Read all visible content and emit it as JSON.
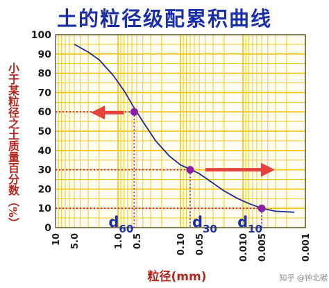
{
  "chart_data": {
    "type": "line",
    "title": "土的粒径级配累积曲线",
    "xlabel": "粒径(mm)",
    "ylabel": "小于某粒径之土质量百分数（%）",
    "x_scale": "log",
    "x_reversed": true,
    "xlim": [
      10,
      0.001
    ],
    "ylim": [
      0,
      100
    ],
    "grid": true,
    "x_tick_labels": [
      "10",
      "5.0",
      "1.0",
      "0.5",
      "0.10",
      "0.05",
      "0.010",
      "0.005",
      "0.001"
    ],
    "x_ticks": [
      10,
      5,
      1,
      0.5,
      0.1,
      0.05,
      0.01,
      0.005,
      0.001
    ],
    "y_ticks": [
      0,
      10,
      20,
      30,
      40,
      50,
      60,
      70,
      80,
      90,
      100
    ],
    "series": [
      {
        "x": [
          5,
          3,
          2,
          1.2,
          0.8,
          0.55,
          0.4,
          0.25,
          0.15,
          0.1,
          0.07,
          0.05,
          0.03,
          0.02,
          0.012,
          0.008,
          0.005,
          0.003,
          0.0015
        ],
        "y": [
          95,
          91,
          87,
          79,
          71,
          62,
          55,
          45,
          37,
          32.5,
          30.3,
          28,
          23,
          19,
          15,
          12.5,
          10,
          8.5,
          8
        ]
      }
    ],
    "annotations": [
      {
        "label": "d60",
        "base": "d",
        "sub": "60",
        "x": 0.55,
        "y": 60
      },
      {
        "label": "d30",
        "base": "d",
        "sub": "30",
        "x": 0.07,
        "y": 30
      },
      {
        "label": "d10",
        "base": "d",
        "sub": "10",
        "x": 0.005,
        "y": 10
      }
    ],
    "colors": {
      "grid": "#f2c200",
      "curve": "#1e2a8a",
      "marker": "#8a1fa8",
      "guide": "#9b1fb0",
      "arrow": "#e8403a",
      "tick_text": "#1a1a1a",
      "annotation_text": "#1a2ea8"
    }
  },
  "watermark": "知乎 @钟北碳"
}
